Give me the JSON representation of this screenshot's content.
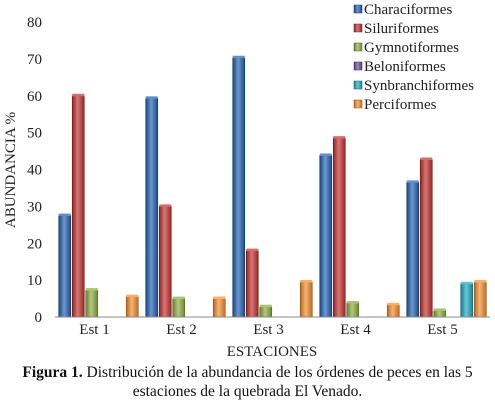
{
  "caption": {
    "label": "Figura 1.",
    "text": " Distribución de la abundancia de los órdenes de peces en las 5 estaciones de la quebrada El Venado."
  },
  "chart_data": {
    "type": "bar",
    "xlabel": "ESTACIONES",
    "ylabel": "ABUNDANCIA %",
    "ylim": [
      0,
      80
    ],
    "yticks": [
      0,
      10,
      20,
      30,
      40,
      50,
      60,
      70,
      80
    ],
    "grid": false,
    "legend_position": "top-right",
    "categories": [
      "Est 1",
      "Est 2",
      "Est 3",
      "Est 4",
      "Est 5"
    ],
    "series": [
      {
        "name": "Characiformes",
        "color": "#1f5fb0",
        "values": [
          27.5,
          59.3,
          70.3,
          43.8,
          36.5
        ]
      },
      {
        "name": "Siluriformes",
        "color": "#c0302c",
        "values": [
          60.0,
          30.0,
          18.0,
          48.5,
          42.7
        ]
      },
      {
        "name": "Gymnotiformes",
        "color": "#8aaa3c",
        "values": [
          7.3,
          5.0,
          2.8,
          3.8,
          1.8
        ]
      },
      {
        "name": "Beloniformes",
        "color": "#6a4a96",
        "values": [
          0,
          0,
          0,
          0,
          0
        ]
      },
      {
        "name": "Synbranchiformes",
        "color": "#1aa8c0",
        "values": [
          0,
          0,
          0,
          0,
          9.0
        ]
      },
      {
        "name": "Perciformes",
        "color": "#f08c2a",
        "values": [
          5.5,
          5.0,
          9.5,
          3.3,
          9.5
        ]
      }
    ]
  }
}
